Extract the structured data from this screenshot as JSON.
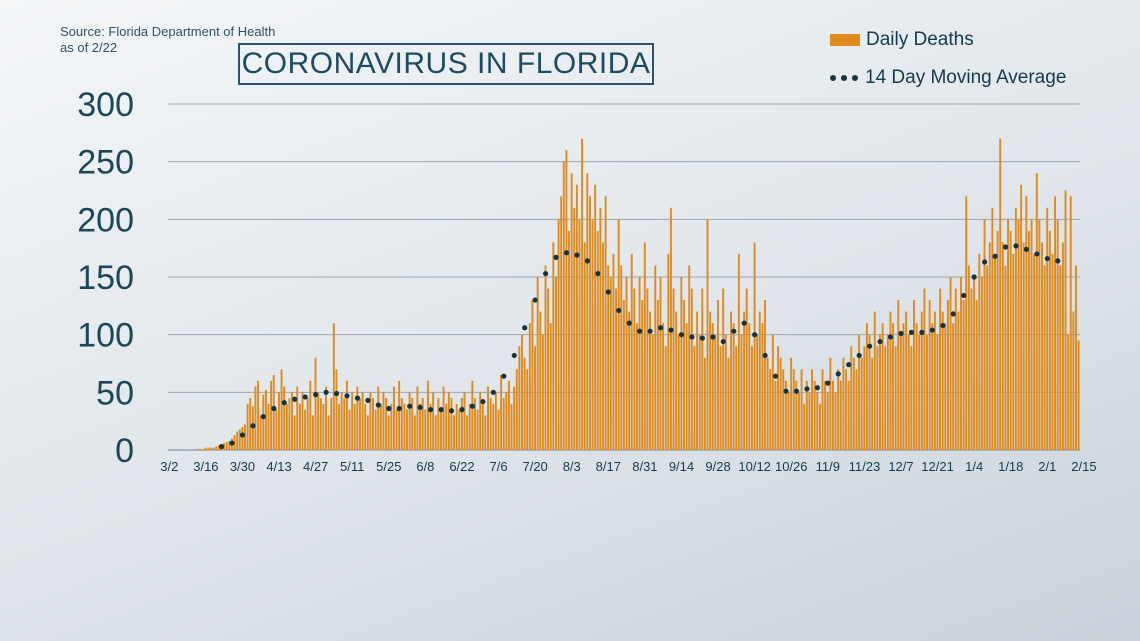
{
  "source": {
    "line1": "Source: Florida Department of Health",
    "line2": "as of 2/22"
  },
  "colors": {
    "bar": "#e08a1d",
    "dot": "#17333d",
    "grid": "#9aa6ae"
  },
  "chart_data": {
    "type": "bar",
    "title": "CORONAVIRUS IN FLORIDA",
    "xlabel": "",
    "ylabel": "",
    "ylim": [
      0,
      300
    ],
    "yticks": [
      0,
      50,
      100,
      150,
      200,
      250,
      300
    ],
    "xticks": [
      "3/2",
      "3/16",
      "3/30",
      "4/13",
      "4/27",
      "5/11",
      "5/25",
      "6/8",
      "6/22",
      "7/6",
      "7/20",
      "8/3",
      "8/17",
      "8/31",
      "9/14",
      "9/28",
      "10/12",
      "10/26",
      "11/9",
      "11/23",
      "12/7",
      "12/21",
      "1/4",
      "1/18",
      "2/1",
      "2/15"
    ],
    "grid": "horizontal",
    "legend_position": "top-right",
    "series": [
      {
        "name": "Daily Deaths",
        "type": "bar",
        "start_date": "3/2",
        "values": [
          0,
          0,
          0,
          0,
          0,
          0,
          0,
          0,
          0,
          0,
          0,
          1,
          1,
          1,
          2,
          2,
          2,
          2,
          3,
          4,
          5,
          6,
          7,
          8,
          10,
          13,
          16,
          18,
          20,
          22,
          40,
          45,
          38,
          55,
          60,
          30,
          48,
          52,
          40,
          60,
          65,
          35,
          50,
          70,
          55,
          40,
          45,
          50,
          30,
          55,
          40,
          50,
          35,
          45,
          60,
          30,
          80,
          50,
          45,
          40,
          55,
          30,
          45,
          110,
          70,
          40,
          50,
          45,
          60,
          35,
          50,
          40,
          55,
          45,
          50,
          40,
          30,
          50,
          45,
          35,
          55,
          40,
          50,
          45,
          30,
          40,
          55,
          35,
          60,
          45,
          40,
          35,
          50,
          45,
          30,
          55,
          40,
          45,
          35,
          60,
          40,
          50,
          30,
          45,
          35,
          55,
          40,
          50,
          45,
          30,
          40,
          35,
          45,
          50,
          30,
          40,
          60,
          45,
          35,
          50,
          40,
          30,
          55,
          45,
          40,
          50,
          35,
          65,
          45,
          50,
          60,
          40,
          55,
          70,
          90,
          100,
          80,
          70,
          110,
          130,
          90,
          150,
          120,
          100,
          160,
          140,
          110,
          180,
          150,
          200,
          220,
          250,
          260,
          190,
          240,
          210,
          230,
          200,
          270,
          180,
          240,
          220,
          200,
          230,
          190,
          210,
          180,
          220,
          160,
          150,
          170,
          140,
          200,
          160,
          130,
          150,
          120,
          170,
          140,
          110,
          150,
          130,
          180,
          140,
          120,
          100,
          160,
          130,
          150,
          110,
          90,
          170,
          210,
          140,
          120,
          100,
          150,
          130,
          110,
          160,
          140,
          90,
          120,
          100,
          140,
          80,
          200,
          120,
          110,
          100,
          130,
          90,
          140,
          100,
          80,
          120,
          110,
          90,
          170,
          100,
          120,
          140,
          110,
          90,
          180,
          100,
          120,
          110,
          130,
          80,
          70,
          100,
          60,
          90,
          80,
          70,
          60,
          50,
          80,
          70,
          60,
          50,
          70,
          40,
          60,
          50,
          70,
          60,
          50,
          40,
          70,
          60,
          50,
          80,
          60,
          50,
          70,
          60,
          80,
          70,
          60,
          90,
          80,
          70,
          100,
          80,
          90,
          110,
          100,
          80,
          120,
          90,
          100,
          110,
          90,
          100,
          120,
          110,
          90,
          130,
          100,
          110,
          120,
          100,
          90,
          130,
          110,
          100,
          120,
          140,
          100,
          130,
          110,
          120,
          100,
          140,
          120,
          110,
          130,
          150,
          110,
          140,
          120,
          150,
          130,
          220,
          160,
          140,
          150,
          130,
          170,
          150,
          200,
          160,
          180,
          210,
          170,
          190,
          270,
          180,
          160,
          200,
          190,
          170,
          210,
          200,
          230,
          180,
          220,
          190,
          200,
          170,
          240,
          200,
          180,
          160,
          210,
          190,
          170,
          220,
          200,
          160,
          180,
          225,
          100,
          220,
          120,
          160,
          95
        ]
      },
      {
        "name": "14 Day Moving Average",
        "type": "dotted-line",
        "start_date": "3/2",
        "values": [
          0,
          0,
          0,
          0,
          0,
          0,
          0,
          0,
          0,
          0,
          0,
          0,
          0,
          0,
          1,
          1,
          1,
          1,
          2,
          2,
          3,
          3,
          4,
          5,
          6,
          7,
          9,
          11,
          13,
          15,
          17,
          19,
          21,
          23,
          25,
          27,
          29,
          31,
          33,
          35,
          36,
          38,
          39,
          40,
          41,
          42,
          43,
          44,
          44,
          45,
          45,
          46,
          46,
          46,
          47,
          47,
          48,
          48,
          49,
          49,
          50,
          50,
          50,
          50,
          49,
          49,
          48,
          48,
          47,
          47,
          46,
          46,
          45,
          45,
          44,
          44,
          43,
          42,
          41,
          40,
          39,
          38,
          37,
          37,
          36,
          36,
          36,
          36,
          36,
          36,
          37,
          37,
          38,
          38,
          38,
          37,
          37,
          36,
          36,
          35,
          35,
          35,
          35,
          35,
          35,
          34,
          34,
          34,
          34,
          34,
          34,
          35,
          35,
          36,
          36,
          37,
          38,
          39,
          40,
          41,
          42,
          44,
          46,
          48,
          50,
          53,
          56,
          60,
          64,
          68,
          72,
          77,
          82,
          88,
          94,
          100,
          106,
          112,
          118,
          124,
          130,
          136,
          142,
          148,
          153,
          158,
          162,
          165,
          167,
          169,
          170,
          171,
          171,
          170,
          170,
          169,
          169,
          168,
          167,
          166,
          164,
          162,
          160,
          157,
          153,
          149,
          145,
          141,
          137,
          133,
          129,
          125,
          121,
          118,
          115,
          112,
          110,
          108,
          106,
          104,
          103,
          102,
          102,
          102,
          103,
          104,
          105,
          106,
          106,
          106,
          106,
          105,
          104,
          103,
          102,
          101,
          100,
          99,
          98,
          98,
          98,
          97,
          97,
          97,
          97,
          97,
          98,
          98,
          98,
          97,
          96,
          95,
          94,
          95,
          97,
          100,
          103,
          106,
          108,
          109,
          110,
          108,
          106,
          103,
          100,
          96,
          92,
          87,
          82,
          77,
          72,
          68,
          64,
          60,
          56,
          53,
          51,
          50,
          50,
          50,
          51,
          52,
          52,
          53,
          53,
          53,
          53,
          53,
          54,
          55,
          56,
          57,
          58,
          60,
          62,
          64,
          66,
          68,
          70,
          72,
          74,
          76,
          78,
          80,
          82,
          84,
          86,
          88,
          90,
          91,
          92,
          93,
          94,
          95,
          96,
          97,
          98,
          99,
          100,
          101,
          101,
          101,
          102,
          102,
          102,
          102,
          102,
          102,
          102,
          102,
          103,
          103,
          104,
          104,
          105,
          106,
          108,
          110,
          112,
          115,
          118,
          122,
          126,
          130,
          134,
          138,
          142,
          146,
          150,
          154,
          158,
          161,
          163,
          165,
          166,
          167,
          168,
          170,
          172,
          174,
          176,
          177,
          178,
          178,
          177,
          177,
          176,
          175,
          174,
          173,
          172,
          171,
          170,
          169,
          168,
          167,
          166,
          165,
          165,
          164,
          164,
          163
        ]
      }
    ]
  }
}
